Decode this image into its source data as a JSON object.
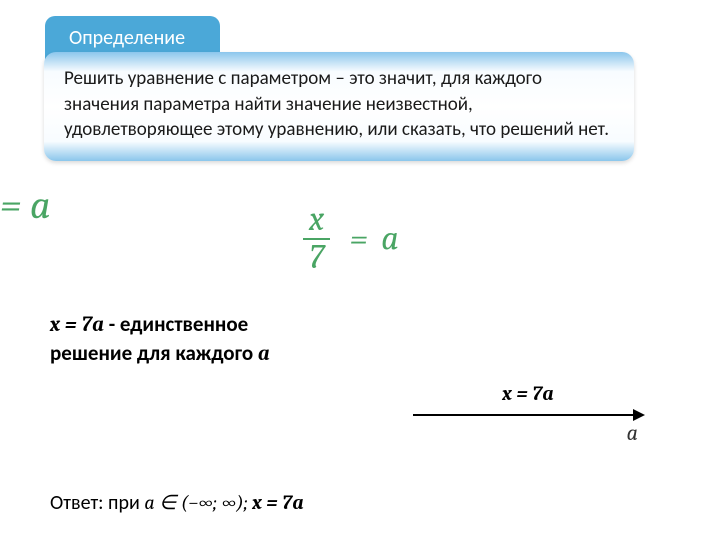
{
  "tab": {
    "label": "Определение"
  },
  "definition": {
    "text": "Решить уравнение с параметром – это значит, для каждого значения параметра  найти значение неизвестной, удовлетворяющее этому уравнению, или сказать, что решений нет."
  },
  "equation_left": {
    "text": "=  a"
  },
  "fraction": {
    "numerator": "x",
    "denominator": "7",
    "equals": "=",
    "rhs": "a",
    "color": "#4aa564"
  },
  "solution": {
    "eq": "x = 7a",
    "dash": "- ",
    "line1": "единственное",
    "line2": "решение для каждого ",
    "param": "a"
  },
  "arrow": {
    "top_label": "x = 7a",
    "axis_label": "a"
  },
  "answer": {
    "prefix": "Ответ: при ",
    "cond": "a ∈ (−∞;  ∞);  ",
    "sol": "x = 7a"
  }
}
